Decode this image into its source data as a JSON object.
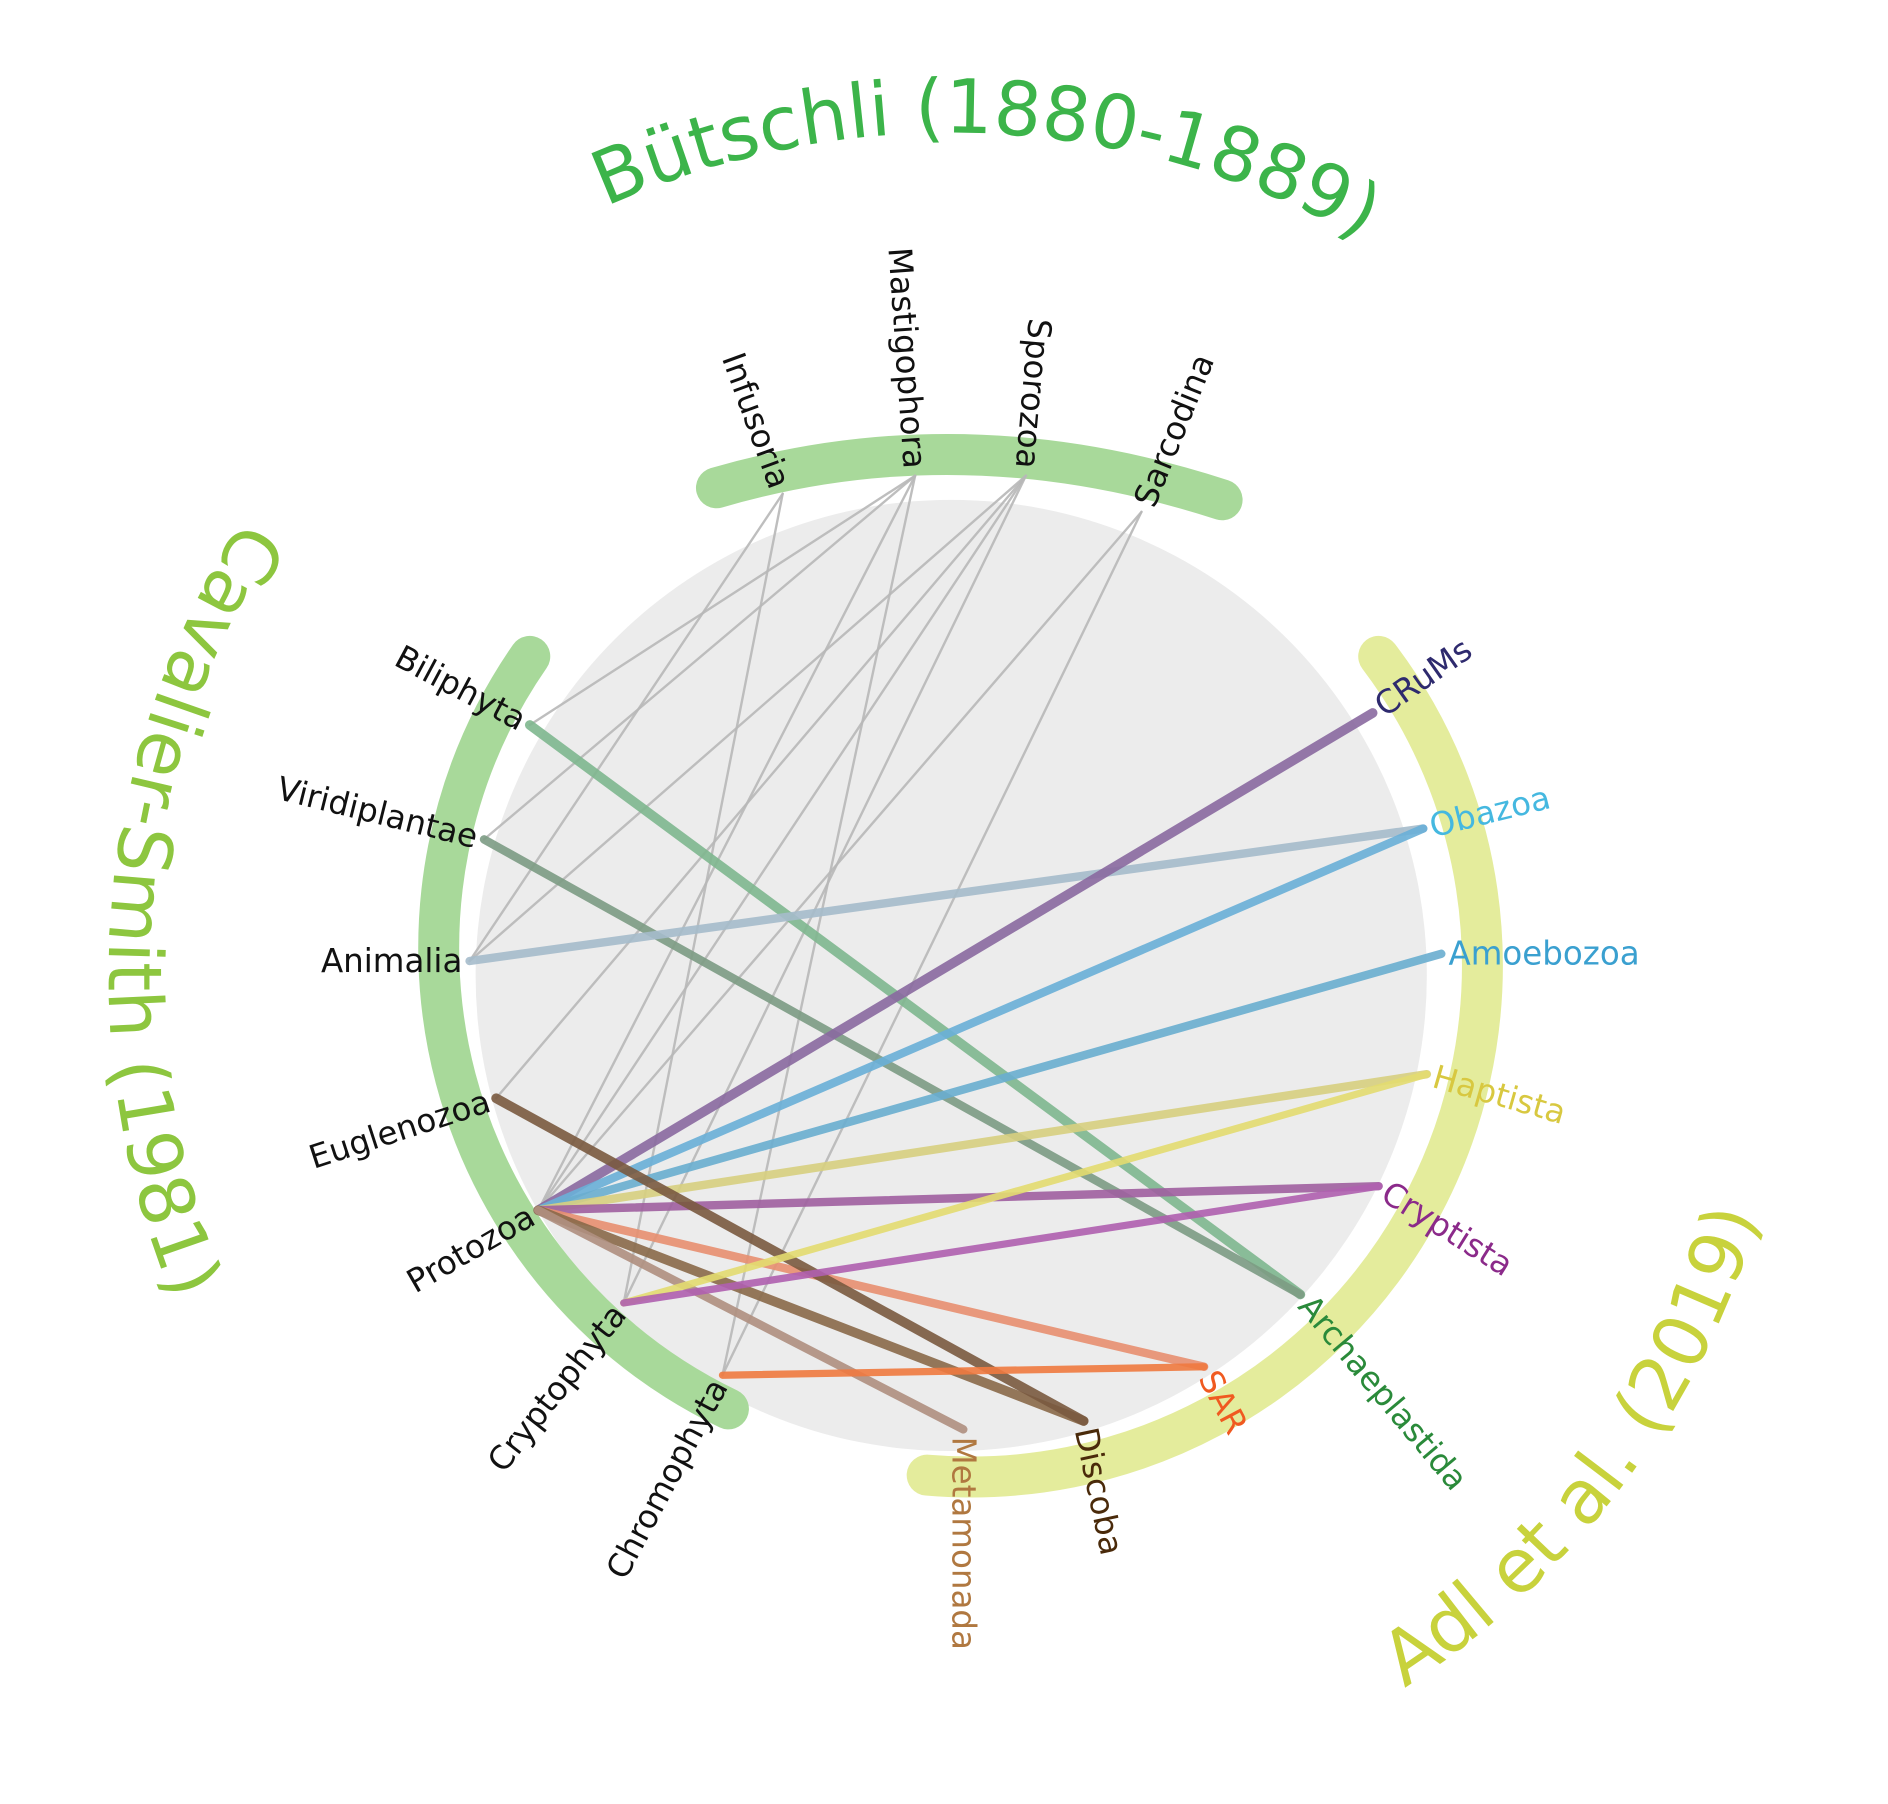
{
  "groups": [
    {
      "title": "Bütschli (1880-1889)",
      "nodes": [
        "Infusoria",
        "Mastigophora",
        "Sporozoa",
        "Sarcodina"
      ]
    },
    {
      "title": "Cavalier-Smith (1981)",
      "nodes": [
        "Biliphyta",
        "Viridiplantae",
        "Animalia",
        "Euglenozoa",
        "Protozoa",
        "Cryptophyta",
        "Chromophyta"
      ]
    },
    {
      "title": "Adl et al. (2019)",
      "nodes": [
        "CRuMs",
        "Obazoa",
        "Amoebozoa",
        "Haptista",
        "Cryptista",
        "Archaeplastida",
        "SAR",
        "Discoba",
        "Metamonada"
      ]
    }
  ]
}
